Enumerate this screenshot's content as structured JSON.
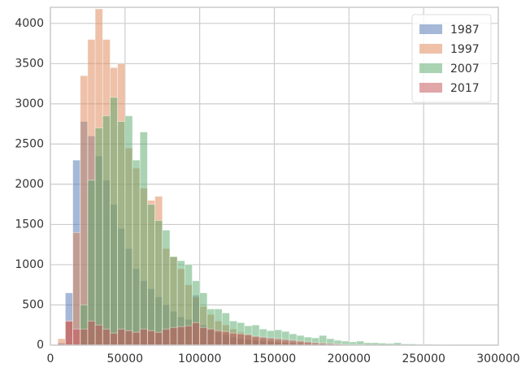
{
  "chart_data": {
    "type": "histogram",
    "bins": [
      0,
      5000,
      10000,
      15000,
      20000,
      25000,
      30000,
      35000,
      40000,
      45000,
      50000,
      55000,
      60000,
      65000,
      70000,
      75000,
      80000,
      85000,
      90000,
      95000,
      100000,
      105000,
      110000,
      115000,
      120000,
      125000,
      130000,
      135000,
      140000,
      145000,
      150000,
      155000,
      160000,
      165000,
      170000,
      175000,
      180000,
      185000,
      190000,
      195000,
      200000,
      205000,
      210000,
      215000,
      220000,
      225000,
      230000,
      235000,
      240000,
      245000,
      250000,
      255000,
      260000,
      265000,
      270000,
      275000,
      280000,
      285000,
      290000,
      295000,
      300000
    ],
    "series": [
      {
        "name": "1987",
        "color": "#4c72b0",
        "values": [
          0,
          30,
          650,
          2300,
          2780,
          2600,
          2350,
          2050,
          1750,
          1450,
          1200,
          950,
          800,
          700,
          600,
          500,
          420,
          350,
          320,
          620,
          250,
          200,
          160,
          130,
          100,
          80,
          70,
          60,
          50,
          40,
          30,
          25,
          20,
          15,
          10,
          0,
          0,
          0,
          0,
          0,
          0,
          0,
          0,
          0,
          0,
          0,
          0,
          0,
          0,
          0,
          0,
          0,
          0,
          0,
          0,
          0,
          0,
          0,
          0,
          0
        ]
      },
      {
        "name": "1997",
        "color": "#dd8452",
        "values": [
          0,
          80,
          300,
          1400,
          3350,
          3800,
          4180,
          3800,
          3450,
          3500,
          2450,
          2200,
          1950,
          1800,
          1850,
          1200,
          1100,
          950,
          750,
          600,
          480,
          380,
          300,
          250,
          200,
          160,
          130,
          100,
          80,
          60,
          50,
          40,
          30,
          25,
          20,
          15,
          10,
          8,
          5,
          5,
          0,
          0,
          0,
          0,
          0,
          0,
          0,
          0,
          0,
          0,
          0,
          0,
          0,
          0,
          0,
          0,
          0,
          0,
          0,
          0
        ]
      },
      {
        "name": "2007",
        "color": "#55a868",
        "values": [
          0,
          0,
          0,
          0,
          500,
          2050,
          2700,
          2850,
          3080,
          2780,
          2850,
          2300,
          2650,
          1750,
          1550,
          1430,
          1100,
          1050,
          1000,
          800,
          650,
          450,
          450,
          400,
          300,
          280,
          240,
          250,
          200,
          180,
          190,
          170,
          140,
          120,
          100,
          90,
          120,
          80,
          60,
          50,
          40,
          50,
          30,
          30,
          25,
          20,
          30,
          15,
          15,
          10,
          10,
          8,
          5,
          5,
          3,
          3,
          2,
          2,
          1,
          1
        ]
      },
      {
        "name": "2017",
        "color": "#c44e52",
        "values": [
          0,
          20,
          300,
          200,
          200,
          300,
          250,
          200,
          150,
          200,
          180,
          160,
          200,
          180,
          160,
          200,
          220,
          230,
          240,
          280,
          220,
          200,
          180,
          170,
          150,
          140,
          130,
          110,
          100,
          90,
          80,
          70,
          60,
          50,
          40,
          30,
          25,
          20,
          15,
          10,
          8,
          5,
          0,
          0,
          0,
          0,
          0,
          0,
          0,
          0,
          0,
          0,
          0,
          0,
          0,
          0,
          0,
          0,
          0,
          0
        ]
      }
    ],
    "xlim": [
      0,
      300000
    ],
    "ylim": [
      0,
      4200
    ],
    "xticks": [
      0,
      50000,
      100000,
      150000,
      200000,
      250000,
      300000
    ],
    "yticks": [
      0,
      500,
      1000,
      1500,
      2000,
      2500,
      3000,
      3500,
      4000
    ],
    "grid": true,
    "legend": "upper-right"
  }
}
